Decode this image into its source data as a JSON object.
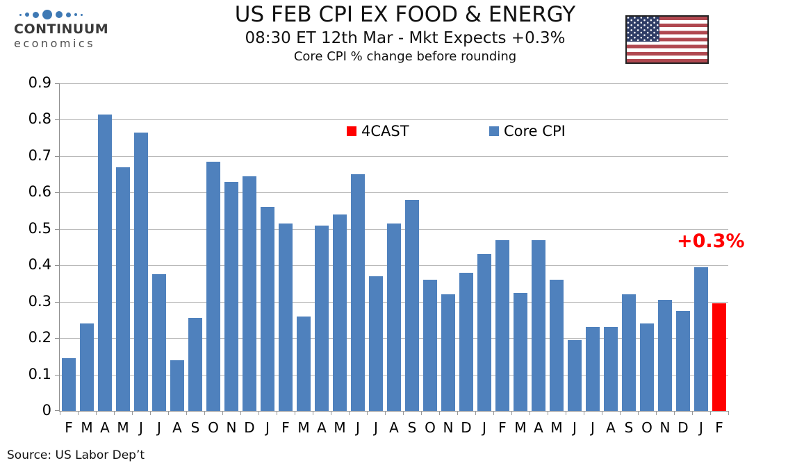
{
  "logo": {
    "name": "CONTINUUM",
    "tagline": "economics",
    "dot_color": "#3E79B4"
  },
  "header": {
    "title": "US FEB CPI EX FOOD & ENERGY",
    "subtitle": "08:30 ET 12th Mar - Mkt Expects +0.3%",
    "note": "Core CPI % change before rounding"
  },
  "flag": {
    "name": "us-flag",
    "stripe_color": "#B04850",
    "canton_color": "#2F3D66"
  },
  "legend": [
    {
      "label": "4CAST",
      "color": "#FF0000"
    },
    {
      "label": "Core CPI",
      "color": "#4F81BD"
    }
  ],
  "annotation": {
    "label": "+0.3%",
    "color": "#FF0000"
  },
  "source": "Source: US Labor Dep’t",
  "chart_data": {
    "type": "bar",
    "title": "US FEB CPI EX FOOD & ENERGY",
    "subtitle": "08:30 ET 12th Mar - Mkt Expects +0.3%",
    "axis_note": "Core CPI % change before rounding",
    "categories": [
      "F",
      "M",
      "A",
      "M",
      "J",
      "J",
      "A",
      "S",
      "O",
      "N",
      "D",
      "J",
      "F",
      "M",
      "A",
      "M",
      "J",
      "J",
      "A",
      "S",
      "O",
      "N",
      "D",
      "J",
      "F",
      "M",
      "A",
      "M",
      "J",
      "J",
      "A",
      "S",
      "O",
      "N",
      "D",
      "J",
      "F"
    ],
    "values": [
      0.145,
      0.24,
      0.815,
      0.67,
      0.765,
      0.375,
      0.14,
      0.255,
      0.685,
      0.63,
      0.645,
      0.56,
      0.515,
      0.26,
      0.51,
      0.54,
      0.65,
      0.37,
      0.515,
      0.58,
      0.36,
      0.32,
      0.38,
      0.43,
      0.47,
      0.325,
      0.47,
      0.36,
      0.195,
      0.23,
      0.23,
      0.32,
      0.24,
      0.305,
      0.275,
      0.395,
      0.295
    ],
    "series_names": [
      "Core CPI",
      "4CAST"
    ],
    "series_colors": {
      "core_cpi": "#4F81BD",
      "forecast": "#FF0000"
    },
    "forecast_index": 36,
    "forecast_annotation": "+0.3%",
    "ylim": [
      0,
      0.9
    ],
    "ytick_labels": [
      "0",
      "0.1",
      "0.2",
      "0.3",
      "0.4",
      "0.5",
      "0.6",
      "0.7",
      "0.8",
      "0.9"
    ],
    "grid": true,
    "legend_position": "top-inside",
    "xlabel": "",
    "ylabel": ""
  }
}
